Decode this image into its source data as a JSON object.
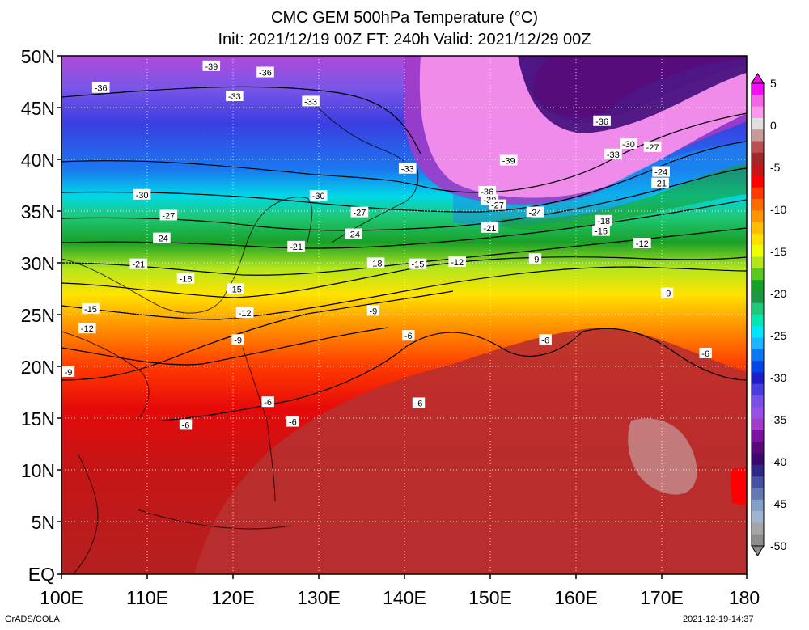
{
  "title": {
    "line1": "CMC GEM 500hPa Temperature (°C)",
    "line2": "Init: 2021/12/19 00Z  FT: 240h  Valid: 2021/12/29 00Z"
  },
  "axes": {
    "lat_labels": [
      "50N",
      "45N",
      "40N",
      "35N",
      "30N",
      "25N",
      "20N",
      "15N",
      "10N",
      "5N",
      "EQ"
    ],
    "lon_labels": [
      "100E",
      "110E",
      "120E",
      "130E",
      "140E",
      "150E",
      "160E",
      "170E",
      "180"
    ],
    "lat_range": [
      0,
      50
    ],
    "lon_range": [
      100,
      180
    ]
  },
  "colorbar": {
    "labels": [
      "5",
      "0",
      "-5",
      "-10",
      "-15",
      "-20",
      "-25",
      "-30",
      "-35",
      "-40",
      "-45",
      "-50"
    ],
    "colors": [
      "#f20ff2",
      "#f266e6",
      "#ff99f0",
      "#e0e0e0",
      "#c89b9b",
      "#b85252",
      "#a02828",
      "#c81414",
      "#ff0000",
      "#ff3a00",
      "#ff6a00",
      "#ff9500",
      "#ffbf00",
      "#ffe300",
      "#f0ff00",
      "#b4e61e",
      "#5ac81e",
      "#1aa028",
      "#1e9646",
      "#1ec878",
      "#00e6b4",
      "#00e6ff",
      "#1eb4ff",
      "#0a78f0",
      "#0046e6",
      "#1e1ec8",
      "#4b3cdc",
      "#7850e6",
      "#9650e6",
      "#a03cc8",
      "#7a14a0",
      "#5a0a78",
      "#3c0a6e",
      "#2d2887",
      "#4650a0",
      "#6478b4",
      "#82a0c8",
      "#a0b4d2",
      "#a5a5a5",
      "#8c8c8c"
    ]
  },
  "contour_labels": [
    {
      "text": "-39",
      "lon": 117.5,
      "lat": 49.0
    },
    {
      "text": "-36",
      "lon": 104.6,
      "lat": 46.9
    },
    {
      "text": "-36",
      "lon": 123.8,
      "lat": 48.4
    },
    {
      "text": "-33",
      "lon": 120.2,
      "lat": 46.1
    },
    {
      "text": "-33",
      "lon": 129.1,
      "lat": 45.6
    },
    {
      "text": "-36",
      "lon": 163.1,
      "lat": 43.7
    },
    {
      "text": "-30",
      "lon": 166.2,
      "lat": 41.5
    },
    {
      "text": "-27",
      "lon": 169.0,
      "lat": 41.2
    },
    {
      "text": "-33",
      "lon": 164.4,
      "lat": 40.5
    },
    {
      "text": "-39",
      "lon": 152.2,
      "lat": 39.9
    },
    {
      "text": "-33",
      "lon": 140.4,
      "lat": 39.1
    },
    {
      "text": "-24",
      "lon": 170.0,
      "lat": 38.8
    },
    {
      "text": "-21",
      "lon": 169.9,
      "lat": 37.7
    },
    {
      "text": "-36",
      "lon": 149.7,
      "lat": 36.9
    },
    {
      "text": "-30",
      "lon": 109.4,
      "lat": 36.6
    },
    {
      "text": "-30",
      "lon": 130.0,
      "lat": 36.5
    },
    {
      "text": "-30",
      "lon": 150.0,
      "lat": 36.1
    },
    {
      "text": "-27",
      "lon": 150.9,
      "lat": 35.6
    },
    {
      "text": "-27",
      "lon": 134.8,
      "lat": 34.9
    },
    {
      "text": "-24",
      "lon": 155.3,
      "lat": 34.9
    },
    {
      "text": "-27",
      "lon": 112.5,
      "lat": 34.6
    },
    {
      "text": "-18",
      "lon": 163.3,
      "lat": 34.1
    },
    {
      "text": "-21",
      "lon": 150.0,
      "lat": 33.4
    },
    {
      "text": "-15",
      "lon": 163.0,
      "lat": 33.1
    },
    {
      "text": "-24",
      "lon": 134.1,
      "lat": 32.8
    },
    {
      "text": "-24",
      "lon": 111.7,
      "lat": 32.4
    },
    {
      "text": "-12",
      "lon": 167.8,
      "lat": 31.9
    },
    {
      "text": "-21",
      "lon": 127.4,
      "lat": 31.6
    },
    {
      "text": "-9",
      "lon": 155.3,
      "lat": 30.4
    },
    {
      "text": "-12",
      "lon": 146.2,
      "lat": 30.1
    },
    {
      "text": "-18",
      "lon": 136.7,
      "lat": 30.0
    },
    {
      "text": "-15",
      "lon": 141.6,
      "lat": 29.9
    },
    {
      "text": "-21",
      "lon": 109.0,
      "lat": 29.9
    },
    {
      "text": "-18",
      "lon": 114.5,
      "lat": 28.5
    },
    {
      "text": "-15",
      "lon": 120.3,
      "lat": 27.5
    },
    {
      "text": "-9",
      "lon": 170.7,
      "lat": 27.1
    },
    {
      "text": "-15",
      "lon": 103.4,
      "lat": 25.6
    },
    {
      "text": "-9",
      "lon": 136.4,
      "lat": 25.4
    },
    {
      "text": "-12",
      "lon": 121.4,
      "lat": 25.2
    },
    {
      "text": "-12",
      "lon": 103.0,
      "lat": 23.7
    },
    {
      "text": "-9",
      "lon": 120.6,
      "lat": 22.6
    },
    {
      "text": "-6",
      "lon": 140.5,
      "lat": 23.0
    },
    {
      "text": "-6",
      "lon": 156.5,
      "lat": 22.6
    },
    {
      "text": "-6",
      "lon": 175.2,
      "lat": 21.3
    },
    {
      "text": "-9",
      "lon": 100.8,
      "lat": 19.5
    },
    {
      "text": "-6",
      "lon": 124.1,
      "lat": 16.6
    },
    {
      "text": "-6",
      "lon": 141.7,
      "lat": 16.5
    },
    {
      "text": "-6",
      "lon": 127.0,
      "lat": 14.7
    },
    {
      "text": "-6",
      "lon": 114.5,
      "lat": 14.4
    }
  ],
  "footer": {
    "left": "GrADS/COLA",
    "right": "2021-12-19-14:37"
  }
}
